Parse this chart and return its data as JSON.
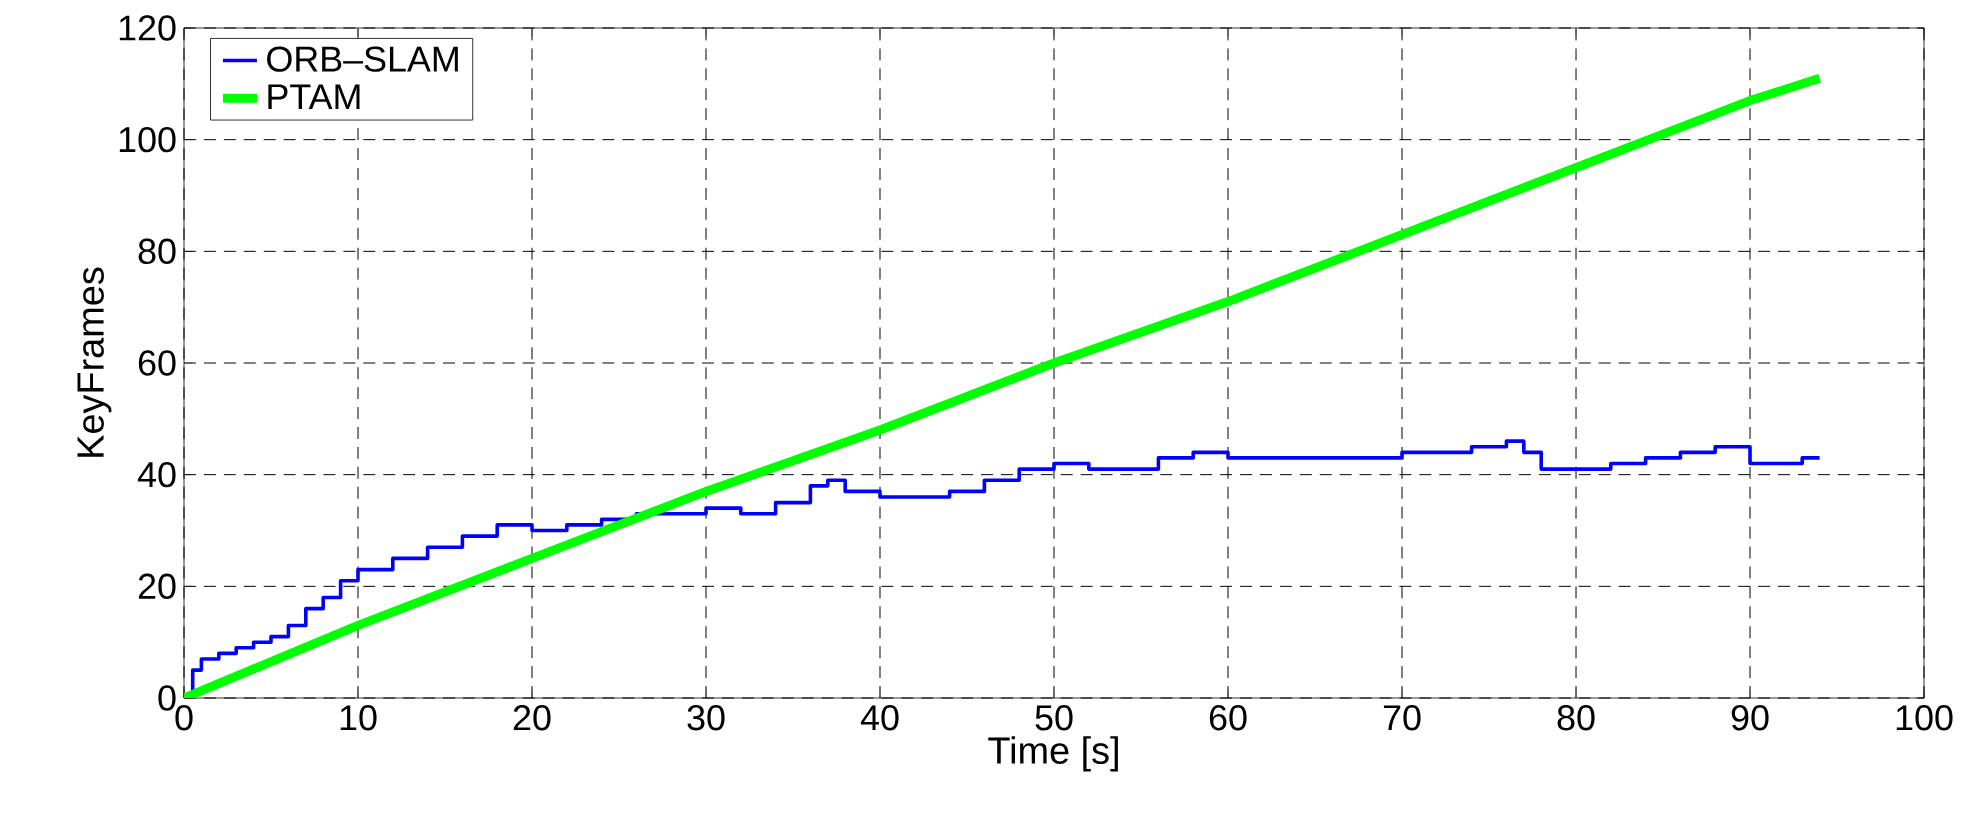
{
  "chart_data": {
    "type": "line",
    "xlabel": "Time [s]",
    "ylabel": "KeyFrames",
    "xlim": [
      0,
      100
    ],
    "ylim": [
      0,
      120
    ],
    "xticks": [
      0,
      10,
      20,
      30,
      40,
      50,
      60,
      70,
      80,
      90,
      100
    ],
    "yticks": [
      0,
      20,
      40,
      60,
      80,
      100,
      120
    ],
    "grid": true,
    "legend": "top left",
    "line_style": "solid",
    "marker": "none",
    "series": [
      {
        "name": "ORB–SLAM",
        "type": "step",
        "color": "#0000ff",
        "x": [
          0,
          0.5,
          1,
          2,
          3,
          4,
          5,
          6,
          7,
          8,
          9,
          10,
          12,
          14,
          16,
          18,
          20,
          22,
          24,
          26,
          28,
          30,
          32,
          34,
          36,
          37,
          38,
          40,
          42,
          44,
          46,
          48,
          50,
          52,
          54,
          56,
          58,
          60,
          62,
          64,
          66,
          68,
          70,
          72,
          74,
          76,
          77,
          78,
          80,
          82,
          84,
          86,
          88,
          89,
          90,
          92,
          93,
          94
        ],
        "values": [
          0,
          5,
          7,
          8,
          9,
          10,
          11,
          13,
          16,
          18,
          21,
          23,
          25,
          27,
          29,
          31,
          30,
          31,
          32,
          33,
          33,
          34,
          33,
          35,
          38,
          39,
          37,
          36,
          36,
          37,
          39,
          41,
          42,
          41,
          41,
          43,
          44,
          43,
          43,
          43,
          43,
          43,
          44,
          44,
          45,
          46,
          44,
          41,
          41,
          42,
          43,
          44,
          45,
          45,
          42,
          42,
          43,
          43
        ]
      },
      {
        "name": "PTAM",
        "color": "#00ff00",
        "x": [
          0,
          10,
          20,
          30,
          40,
          50,
          60,
          70,
          80,
          90,
          94
        ],
        "values": [
          0,
          13,
          25,
          37,
          48,
          60,
          71,
          83,
          95,
          107,
          111
        ]
      }
    ]
  }
}
